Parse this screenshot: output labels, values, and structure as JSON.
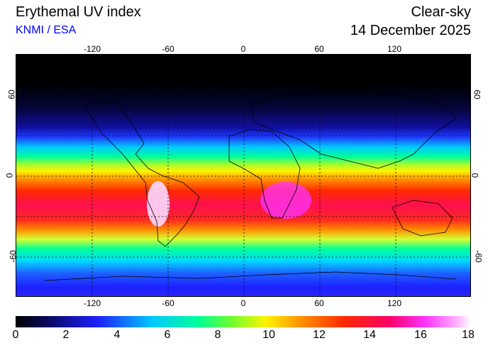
{
  "header": {
    "title": "Erythemal UV index",
    "source": "KNMI / ESA",
    "condition": "Clear-sky",
    "date": "14 December 2025"
  },
  "longitude_ticks": [
    "-120",
    "-60",
    "0",
    "60",
    "120"
  ],
  "latitude_ticks": [
    "60",
    "0",
    "-60"
  ],
  "colorbar": {
    "labels": [
      "0",
      "2",
      "4",
      "6",
      "8",
      "10",
      "12",
      "14",
      "16",
      "18"
    ]
  }
}
